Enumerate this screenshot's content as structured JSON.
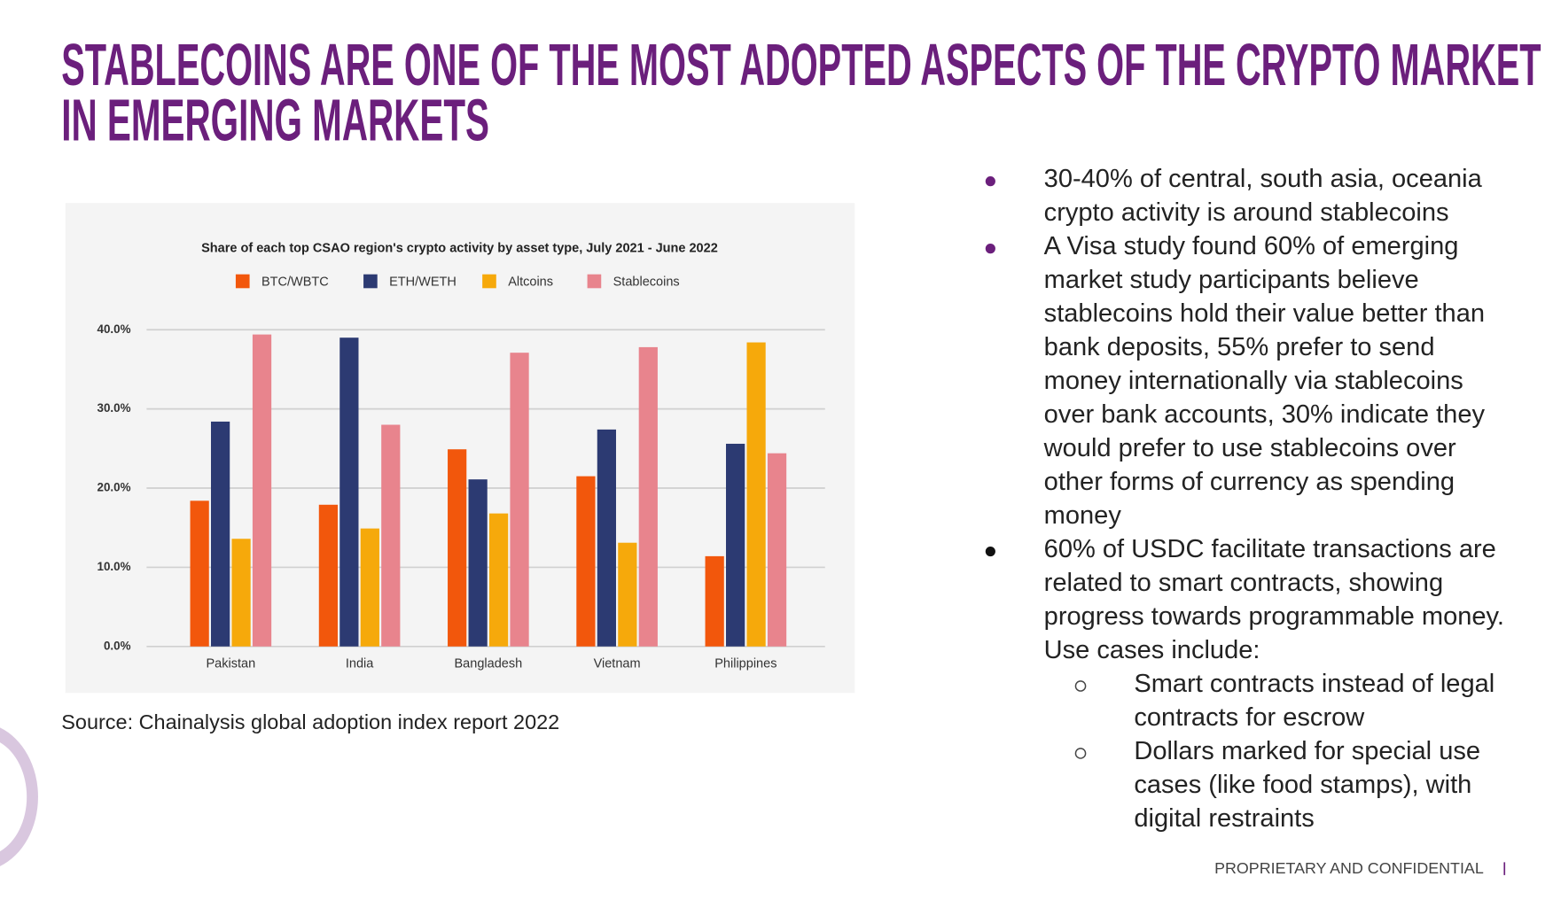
{
  "title": [
    "STABLECOINS ARE ONE OF THE MOST ADOPTED ASPECTS OF THE CRYPTO MARKET",
    "IN EMERGING MARKETS"
  ],
  "chart_data": {
    "type": "bar",
    "title": "Share of each top CSAO region's crypto activity by asset type, July 2021 - June 2022",
    "categories": [
      "Pakistan",
      "India",
      "Bangladesh",
      "Vietnam",
      "Philippines"
    ],
    "series": [
      {
        "name": "BTC/WBTC",
        "color": "#f2570c",
        "values": [
          18.4,
          17.9,
          24.9,
          21.5,
          11.4
        ]
      },
      {
        "name": "ETH/WETH",
        "color": "#2c3a72",
        "values": [
          28.4,
          39.0,
          21.1,
          27.4,
          25.6
        ]
      },
      {
        "name": "Altcoins",
        "color": "#f6a90b",
        "values": [
          13.6,
          14.9,
          16.8,
          13.1,
          38.4
        ]
      },
      {
        "name": "Stablecoins",
        "color": "#e8848d",
        "values": [
          39.4,
          28.0,
          37.1,
          37.8,
          24.4
        ]
      }
    ],
    "ylim": [
      0,
      40
    ],
    "yticks": [
      {
        "value": 0,
        "label": "0.0%"
      },
      {
        "value": 10,
        "label": "10.0%"
      },
      {
        "value": 20,
        "label": "20.0%"
      },
      {
        "value": 30,
        "label": "30.0%"
      },
      {
        "value": 40,
        "label": "40.0%"
      }
    ],
    "grid": true,
    "legend": "top"
  },
  "source": "Source: Chainalysis global adoption index report 2022",
  "bullets": [
    {
      "lines": [
        "30-40% of central, south asia, oceania",
        "crypto activity is around stablecoins"
      ]
    },
    {
      "lines": [
        "A Visa study found 60% of emerging",
        "market study participants believe",
        "stablecoins hold their value better than",
        "bank deposits, 55% prefer to send",
        "money internationally via stablecoins",
        "over bank accounts, 30% indicate they",
        "would prefer to use stablecoins over",
        "other forms of currency as spending",
        "money"
      ]
    },
    {
      "lines": [
        "60% of USDC facilitate transactions are",
        "related to smart contracts, showing",
        "progress towards programmable money.",
        "Use cases include:"
      ],
      "subitems": [
        {
          "lines": [
            "Smart contracts instead of legal",
            "contracts for escrow"
          ]
        },
        {
          "lines": [
            "Dollars marked for special use",
            "cases (like food stamps), with",
            "digital restraints"
          ]
        }
      ]
    }
  ],
  "footer": "PROPRIETARY AND CONFIDENTIAL"
}
